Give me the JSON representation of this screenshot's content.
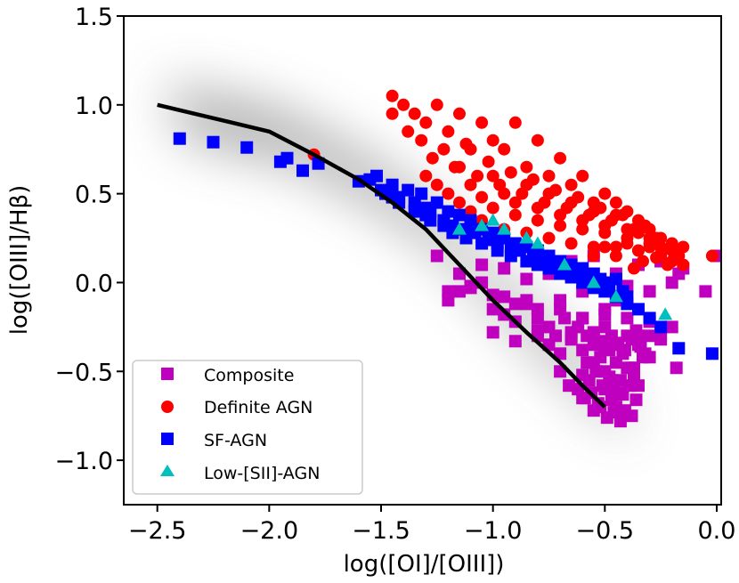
{
  "chart_data": {
    "type": "scatter",
    "title": "",
    "xlabel": "log([OI]/[OIII])",
    "ylabel": "log([OIII]/Hβ)",
    "xlim": [
      -2.65,
      0.02
    ],
    "ylim": [
      -1.25,
      1.5
    ],
    "xticks": [
      -2.5,
      -2.0,
      -1.5,
      -1.0,
      -0.5,
      0.0
    ],
    "xtick_labels": [
      "−2.5",
      "−2.0",
      "−1.5",
      "−1.0",
      "−0.5",
      "0.0"
    ],
    "yticks": [
      -1.0,
      -0.5,
      0.0,
      0.5,
      1.0,
      1.5
    ],
    "ytick_labels": [
      "−1.0",
      "−0.5",
      "0.0",
      "0.5",
      "1.0",
      "1.5"
    ],
    "legend_position": "lower-left",
    "background_density": "gray shaded density band following the black demarcation line",
    "demarcation_line": {
      "color": "#000000",
      "x": [
        -2.5,
        -2.0,
        -1.8,
        -1.6,
        -1.45,
        -1.3,
        -1.15,
        -1.0,
        -0.85,
        -0.7,
        -0.6,
        -0.5
      ],
      "y": [
        1.0,
        0.85,
        0.72,
        0.58,
        0.45,
        0.3,
        0.1,
        -0.1,
        -0.28,
        -0.45,
        -0.58,
        -0.7
      ]
    },
    "series": [
      {
        "name": "Composite",
        "marker": "square",
        "color": "#bf00bf",
        "x": [
          -1.2,
          -1.15,
          -1.1,
          -1.05,
          -1.0,
          -0.95,
          -0.9,
          -0.85,
          -0.8,
          -0.75,
          -0.7,
          -0.65,
          -0.6,
          -0.55,
          -0.5,
          -0.45,
          -0.4,
          -0.35,
          -0.3,
          -0.25,
          -0.2,
          -0.15,
          -1.25,
          -1.2,
          -1.1,
          -1.0,
          -0.95,
          -0.9,
          -0.85,
          -0.8,
          -0.75,
          -0.7,
          -0.65,
          -0.6,
          -0.55,
          -0.5,
          -0.45,
          -0.4,
          -0.35,
          -0.3,
          -0.25,
          -1.15,
          -1.05,
          -0.95,
          -0.85,
          -0.8,
          -0.75,
          -0.7,
          -0.65,
          -0.6,
          -0.58,
          -0.55,
          -0.52,
          -0.5,
          -0.48,
          -0.45,
          -0.42,
          -0.4,
          -0.38,
          -0.35,
          -0.33,
          -0.3,
          -1.0,
          -0.9,
          -0.8,
          -0.72,
          -0.68,
          -0.62,
          -0.58,
          -0.55,
          -0.52,
          -0.5,
          -0.47,
          -0.44,
          -0.41,
          -0.38,
          -0.36,
          -0.34,
          -0.32,
          -0.6,
          -0.57,
          -0.54,
          -0.51,
          -0.48,
          -0.46,
          -0.43,
          -0.4,
          -0.37,
          -0.35,
          -0.62,
          -0.59,
          -0.56,
          -0.53,
          -0.5,
          -0.47,
          -0.45,
          -0.42,
          -0.39,
          -0.36,
          -0.55,
          -0.52,
          -0.49,
          -0.46,
          -0.43,
          -0.41,
          -0.38,
          -0.65,
          -0.6,
          -0.5,
          -0.45,
          -0.42,
          -0.2,
          -0.18,
          -0.05,
          0.0,
          -0.25,
          -0.3,
          -0.17,
          -0.7,
          -0.66,
          -0.6,
          -0.55,
          -0.47,
          -0.43,
          -0.37
        ],
        "y": [
          -0.05,
          0.05,
          -0.02,
          0.1,
          -0.07,
          0.08,
          -0.12,
          0.02,
          -0.15,
          0.05,
          -0.1,
          0.12,
          -0.05,
          0.15,
          -0.18,
          0.05,
          -0.02,
          0.1,
          -0.05,
          0.12,
          0.0,
          0.08,
          0.15,
          -0.1,
          -0.03,
          -0.15,
          -0.18,
          -0.22,
          -0.1,
          -0.2,
          -0.25,
          -0.15,
          -0.28,
          -0.2,
          -0.3,
          -0.25,
          -0.35,
          -0.2,
          -0.3,
          -0.22,
          -0.32,
          -0.05,
          0.0,
          -0.08,
          -0.12,
          -0.3,
          -0.35,
          -0.4,
          -0.32,
          -0.38,
          -0.45,
          -0.35,
          -0.42,
          -0.5,
          -0.38,
          -0.45,
          -0.4,
          -0.3,
          -0.48,
          -0.35,
          -0.42,
          -0.3,
          -0.28,
          -0.33,
          -0.27,
          -0.3,
          -0.2,
          -0.25,
          -0.3,
          -0.28,
          -0.33,
          -0.36,
          -0.3,
          -0.34,
          -0.38,
          -0.32,
          -0.27,
          -0.36,
          -0.4,
          -0.52,
          -0.55,
          -0.5,
          -0.58,
          -0.53,
          -0.6,
          -0.55,
          -0.48,
          -0.52,
          -0.58,
          -0.6,
          -0.65,
          -0.62,
          -0.68,
          -0.6,
          -0.66,
          -0.7,
          -0.63,
          -0.58,
          -0.66,
          -0.72,
          -0.7,
          -0.76,
          -0.73,
          -0.78,
          -0.72,
          -0.75,
          -0.3,
          -0.2,
          -0.15,
          -0.1,
          -0.08,
          -0.25,
          -0.48,
          -0.05,
          0.15,
          -0.3,
          -0.42,
          0.05,
          -0.5,
          -0.58,
          -0.65,
          -0.45,
          -0.55,
          -0.62,
          -0.48
        ]
      },
      {
        "name": "Definite AGN",
        "marker": "circle",
        "color": "#ff0000",
        "x": [
          -1.45,
          -1.4,
          -1.35,
          -1.3,
          -1.25,
          -1.2,
          -1.15,
          -1.1,
          -1.05,
          -1.0,
          -0.95,
          -0.9,
          -0.85,
          -0.8,
          -0.75,
          -0.7,
          -0.65,
          -0.6,
          -0.55,
          -0.5,
          -0.45,
          -0.4,
          -0.35,
          -0.3,
          -0.25,
          -0.2,
          -0.15,
          -1.45,
          -1.38,
          -1.32,
          -1.27,
          -1.22,
          -1.17,
          -1.12,
          -1.07,
          -1.02,
          -0.97,
          -0.92,
          -0.87,
          -0.82,
          -0.77,
          -0.72,
          -0.67,
          -0.62,
          -0.57,
          -0.52,
          -0.47,
          -0.42,
          -0.37,
          -0.32,
          -0.27,
          -1.3,
          -1.25,
          -1.2,
          -1.15,
          -1.1,
          -1.05,
          -1.0,
          -0.95,
          -0.9,
          -0.85,
          -0.8,
          -0.75,
          -0.7,
          -0.65,
          -0.6,
          -0.55,
          -0.5,
          -0.45,
          -0.4,
          -0.35,
          -0.3,
          -0.25,
          -0.2,
          -1.15,
          -1.1,
          -1.05,
          -1.0,
          -0.95,
          -0.9,
          -0.85,
          -0.8,
          -0.75,
          -0.7,
          -0.65,
          -0.6,
          -0.55,
          -0.5,
          -0.45,
          -0.4,
          -0.35,
          -0.3,
          -0.25,
          -0.55,
          -0.5,
          -0.45,
          -0.4,
          -0.35,
          -0.3,
          -0.25,
          -0.2,
          -0.15,
          -0.02,
          -0.37,
          -0.33,
          -0.27,
          -0.22,
          -0.17,
          -1.8
        ],
        "y": [
          1.05,
          1.0,
          0.95,
          0.9,
          1.0,
          0.85,
          0.95,
          0.75,
          0.9,
          0.8,
          0.75,
          0.9,
          0.65,
          0.8,
          0.6,
          0.7,
          0.55,
          0.6,
          0.45,
          0.5,
          0.45,
          0.4,
          0.35,
          0.3,
          0.25,
          0.22,
          0.2,
          0.95,
          0.85,
          0.8,
          0.7,
          0.75,
          0.65,
          0.78,
          0.6,
          0.68,
          0.55,
          0.62,
          0.5,
          0.58,
          0.45,
          0.52,
          0.42,
          0.48,
          0.38,
          0.42,
          0.35,
          0.38,
          0.3,
          0.32,
          0.25,
          0.6,
          0.55,
          0.5,
          0.65,
          0.55,
          0.48,
          0.6,
          0.5,
          0.45,
          0.55,
          0.42,
          0.5,
          0.38,
          0.45,
          0.35,
          0.4,
          0.32,
          0.38,
          0.3,
          0.28,
          0.25,
          0.2,
          0.18,
          0.45,
          0.4,
          0.35,
          0.42,
          0.3,
          0.38,
          0.28,
          0.35,
          0.25,
          0.32,
          0.22,
          0.3,
          0.2,
          0.28,
          0.2,
          0.25,
          0.18,
          0.22,
          0.15,
          0.15,
          0.2,
          0.15,
          0.22,
          0.18,
          0.2,
          0.16,
          0.12,
          0.1,
          0.15,
          0.08,
          0.12,
          0.14,
          0.1,
          0.15,
          0.72
        ],
        "data_points_note": "red circles concentrated in upper-right region"
      },
      {
        "name": "SF-AGN",
        "marker": "square",
        "color": "#0000ff",
        "x": [
          -2.4,
          -2.25,
          -2.1,
          -1.95,
          -1.92,
          -1.85,
          -1.78,
          -1.6,
          -1.55,
          -1.52,
          -1.48,
          -1.45,
          -1.42,
          -1.38,
          -1.35,
          -1.32,
          -1.3,
          -1.28,
          -1.25,
          -1.22,
          -1.2,
          -1.18,
          -1.15,
          -1.12,
          -1.1,
          -1.08,
          -1.05,
          -1.02,
          -1.0,
          -0.98,
          -0.95,
          -0.92,
          -0.9,
          -0.88,
          -0.85,
          -0.82,
          -0.8,
          -0.78,
          -0.75,
          -0.72,
          -0.7,
          -0.68,
          -0.65,
          -0.62,
          -0.6,
          -0.58,
          -0.55,
          -0.52,
          -0.5,
          -0.48,
          -0.45,
          -0.42,
          -0.4,
          -1.5,
          -1.42,
          -1.35,
          -1.28,
          -1.22,
          -1.18,
          -1.12,
          -1.05,
          -0.98,
          -0.92,
          -0.85,
          -0.8,
          -0.75,
          -0.7,
          -0.65,
          -0.6,
          -0.55,
          -0.5,
          -0.45,
          -0.4,
          -0.35,
          -0.3,
          -0.25,
          -0.17,
          -0.02,
          -1.45,
          -1.3,
          -1.15,
          -1.0,
          -0.9,
          -0.8,
          -0.7
        ],
        "y": [
          0.81,
          0.79,
          0.76,
          0.68,
          0.7,
          0.63,
          0.67,
          0.57,
          0.58,
          0.6,
          0.5,
          0.55,
          0.48,
          0.52,
          0.45,
          0.5,
          0.42,
          0.4,
          0.45,
          0.35,
          0.4,
          0.32,
          0.38,
          0.3,
          0.35,
          0.28,
          0.3,
          0.25,
          0.28,
          0.22,
          0.25,
          0.2,
          0.22,
          0.18,
          0.2,
          0.15,
          0.18,
          0.12,
          0.15,
          0.1,
          0.12,
          0.08,
          0.1,
          0.05,
          0.08,
          0.03,
          0.05,
          0.02,
          0.0,
          -0.02,
          0.02,
          -0.05,
          -0.08,
          0.52,
          0.45,
          0.4,
          0.35,
          0.32,
          0.28,
          0.25,
          0.22,
          0.18,
          0.15,
          0.12,
          0.1,
          0.08,
          0.05,
          0.03,
          0.0,
          -0.03,
          -0.05,
          -0.08,
          -0.12,
          -0.15,
          -0.2,
          -0.25,
          -0.37,
          -0.4,
          0.48,
          0.38,
          0.3,
          0.24,
          0.2,
          0.15,
          0.08
        ],
        "data_points_note": "blue squares along the upper edge of the density band"
      },
      {
        "name": "Low-[SII]-AGN",
        "marker": "triangle",
        "color": "#00bfbf",
        "x": [
          -1.15,
          -1.05,
          -0.95,
          -0.85,
          -0.8,
          -0.68,
          -0.55,
          -0.45,
          -0.23,
          -1.0
        ],
        "y": [
          0.3,
          0.32,
          0.3,
          0.25,
          0.22,
          0.1,
          0.0,
          -0.08,
          -0.18,
          0.35
        ]
      }
    ]
  }
}
